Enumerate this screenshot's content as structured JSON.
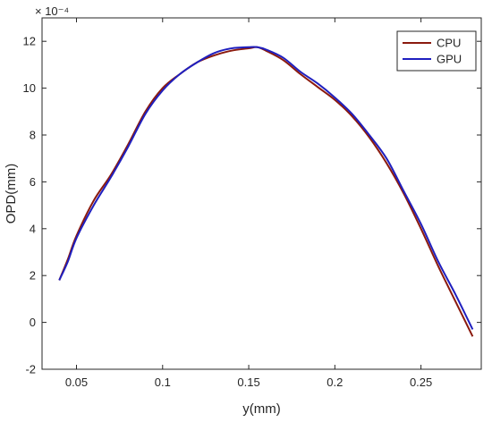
{
  "chart_data": {
    "type": "line",
    "title": "",
    "xlabel": "y(mm)",
    "ylabel": "OPD(mm)",
    "exponent_label": "× 10⁻⁴",
    "xlim": [
      0.03,
      0.285
    ],
    "ylim": [
      -2,
      13
    ],
    "xticks": [
      0.05,
      0.1,
      0.15,
      0.2,
      0.25
    ],
    "xtick_labels": [
      "0.05",
      "0.1",
      "0.15",
      "0.2",
      "0.25"
    ],
    "yticks": [
      -2,
      0,
      2,
      4,
      6,
      8,
      10,
      12
    ],
    "ytick_labels": [
      "-2",
      "0",
      "2",
      "4",
      "6",
      "8",
      "10",
      "12"
    ],
    "grid": false,
    "legend_position": "top-right",
    "series": [
      {
        "name": "CPU",
        "color": "#8b1a0e",
        "x": [
          0.04,
          0.045,
          0.05,
          0.06,
          0.07,
          0.08,
          0.09,
          0.1,
          0.11,
          0.12,
          0.13,
          0.14,
          0.15,
          0.155,
          0.16,
          0.17,
          0.18,
          0.19,
          0.2,
          0.21,
          0.22,
          0.23,
          0.24,
          0.25,
          0.26,
          0.27,
          0.28
        ],
        "y": [
          1.8,
          2.7,
          3.7,
          5.2,
          6.3,
          7.6,
          9.0,
          10.0,
          10.6,
          11.1,
          11.4,
          11.6,
          11.7,
          11.75,
          11.6,
          11.2,
          10.6,
          10.05,
          9.5,
          8.8,
          7.9,
          6.8,
          5.5,
          4.0,
          2.4,
          0.9,
          -0.6
        ]
      },
      {
        "name": "GPU",
        "color": "#1f1fbf",
        "x": [
          0.04,
          0.045,
          0.05,
          0.06,
          0.07,
          0.08,
          0.09,
          0.1,
          0.11,
          0.12,
          0.13,
          0.14,
          0.15,
          0.155,
          0.16,
          0.17,
          0.18,
          0.19,
          0.2,
          0.21,
          0.22,
          0.23,
          0.24,
          0.25,
          0.26,
          0.27,
          0.28
        ],
        "y": [
          1.8,
          2.6,
          3.6,
          5.0,
          6.2,
          7.5,
          8.9,
          9.9,
          10.6,
          11.1,
          11.5,
          11.7,
          11.75,
          11.75,
          11.65,
          11.3,
          10.7,
          10.2,
          9.6,
          8.9,
          8.0,
          7.0,
          5.6,
          4.2,
          2.6,
          1.2,
          -0.3
        ]
      }
    ]
  }
}
